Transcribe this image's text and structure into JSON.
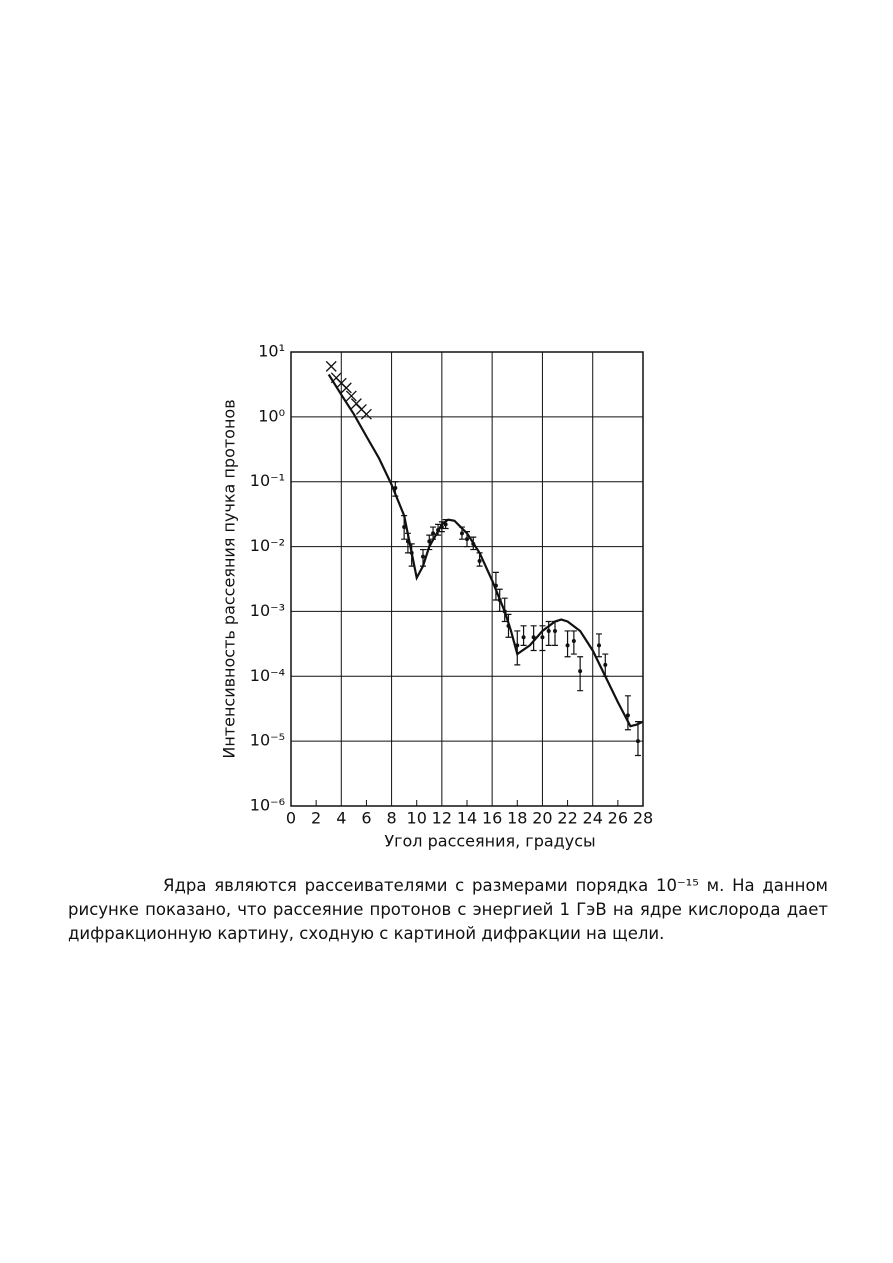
{
  "chart_data": {
    "type": "line",
    "xlabel": "Угол рассеяния, градусы",
    "ylabel": "Интенсивность рассеяния пучка протонов",
    "log_y": true,
    "grid": true,
    "color": "#111111",
    "xlim": [
      0,
      28
    ],
    "xticks": [
      0,
      2,
      4,
      6,
      8,
      10,
      12,
      14,
      16,
      18,
      20,
      22,
      24,
      26,
      28
    ],
    "ylim": [
      1e-06,
      10
    ],
    "yticks": [
      {
        "value": 10,
        "label": "10¹"
      },
      {
        "value": 1,
        "label": "10⁰"
      },
      {
        "value": 0.1,
        "label": "10⁻¹"
      },
      {
        "value": 0.01,
        "label": "10⁻²"
      },
      {
        "value": 0.001,
        "label": "10⁻³"
      },
      {
        "value": 0.0001,
        "label": "10⁻⁴"
      },
      {
        "value": 1e-05,
        "label": "10⁻⁵"
      },
      {
        "value": 1e-06,
        "label": "10⁻⁶"
      }
    ],
    "series": [
      {
        "kind": "line",
        "x": [
          3,
          4,
          5,
          6,
          7,
          8,
          9,
          9.5,
          10,
          10.5,
          11,
          12,
          12.5,
          13,
          14,
          15,
          16,
          17,
          17.5,
          18,
          19,
          20,
          21,
          21.5,
          22,
          23,
          24,
          25,
          26,
          27,
          27.5,
          28
        ],
        "values": [
          4.5,
          2.2,
          1.1,
          0.5,
          0.23,
          0.09,
          0.03,
          0.01,
          0.0033,
          0.005,
          0.01,
          0.022,
          0.026,
          0.025,
          0.016,
          0.008,
          0.003,
          0.001,
          0.0005,
          0.00022,
          0.0003,
          0.0005,
          0.0007,
          0.00075,
          0.0007,
          0.0005,
          0.00025,
          0.0001,
          4e-05,
          1.7e-05,
          1.8e-05,
          2e-05
        ]
      },
      {
        "kind": "cross",
        "x": [
          3.2,
          3.6,
          4,
          4.4,
          4.8,
          5.2,
          5.6,
          6
        ],
        "values": [
          6,
          4,
          3.3,
          2.8,
          2.1,
          1.6,
          1.3,
          1.1
        ]
      },
      {
        "kind": "errorbar",
        "x": [
          8.3,
          9,
          9.3,
          9.6,
          10.5,
          11,
          11.3,
          11.7,
          12,
          12.3,
          13.6,
          14,
          14.5,
          15,
          16.3,
          16.6,
          17,
          17.3,
          18,
          18.5,
          19.3,
          20,
          20.5,
          21,
          22,
          22.5,
          23,
          24.5,
          25,
          26.8,
          27.6
        ],
        "values": [
          0.08,
          0.02,
          0.012,
          0.008,
          0.007,
          0.012,
          0.016,
          0.018,
          0.02,
          0.022,
          0.016,
          0.013,
          0.011,
          0.006,
          0.0025,
          0.0015,
          0.001,
          0.0006,
          0.0003,
          0.0004,
          0.0004,
          0.0004,
          0.0005,
          0.0005,
          0.0003,
          0.00035,
          0.00012,
          0.0003,
          0.00015,
          2.5e-05,
          1e-05
        ],
        "low": [
          0.06,
          0.013,
          0.008,
          0.005,
          0.005,
          0.009,
          0.013,
          0.015,
          0.017,
          0.019,
          0.013,
          0.01,
          0.009,
          0.005,
          0.0015,
          0.001,
          0.0007,
          0.0004,
          0.00015,
          0.0003,
          0.00025,
          0.00025,
          0.0003,
          0.0003,
          0.0002,
          0.00022,
          6e-05,
          0.0002,
          0.0001,
          1.5e-05,
          6e-06
        ],
        "high": [
          0.1,
          0.03,
          0.016,
          0.011,
          0.009,
          0.015,
          0.02,
          0.022,
          0.024,
          0.026,
          0.02,
          0.017,
          0.014,
          0.008,
          0.004,
          0.0022,
          0.0016,
          0.0009,
          0.0005,
          0.0006,
          0.0006,
          0.0006,
          0.0007,
          0.0007,
          0.0005,
          0.0005,
          0.0002,
          0.00045,
          0.00022,
          5e-05,
          2e-05
        ]
      }
    ]
  },
  "caption": "Ядра являются рассеивателями с размерами порядка 10⁻¹⁵ м. На данном рисунке показано, что рассеяние протонов с энергией 1 ГэВ на ядре кислорода дает дифракционную картину, сходную с картиной дифракции на щели."
}
